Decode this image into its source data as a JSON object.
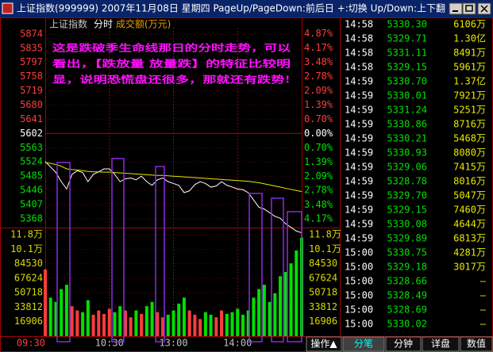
{
  "window": {
    "title": "上证指数(999999) 2007年11月08日 星期四 PageUp/PageDown:前后日 +:切换 Up/Down:上下翻"
  },
  "chart_data": {
    "type": "line",
    "title": "上证指数",
    "period": "分时",
    "annotation": [
      "这是跌破季生命线那日的分时走势，可以",
      "看出，【跌放量 放量跌】的特征比较明",
      "显，说明恐慌盘还很多，那就还有跌势!"
    ],
    "categories": [
      "09:30",
      null,
      null,
      null,
      null,
      null,
      null,
      null,
      null,
      null,
      null,
      null,
      "10:30",
      null,
      null,
      null,
      null,
      null,
      null,
      null,
      null,
      null,
      null,
      null,
      "13:00",
      null,
      null,
      null,
      null,
      null,
      null,
      null,
      null,
      null,
      null,
      null,
      "14:00",
      null,
      null,
      null,
      null,
      null,
      null,
      null,
      null,
      null,
      null,
      null,
      null
    ],
    "series": [
      {
        "color": "#ffffff",
        "values": [
          5525,
          5510,
          5495,
          5470,
          5450,
          5490,
          5500,
          5495,
          5470,
          5490,
          5497,
          5505,
          5505,
          5490,
          5470,
          5478,
          5480,
          5475,
          5485,
          5470,
          5460,
          5475,
          5480,
          5470,
          5465,
          5460,
          5440,
          5445,
          5462,
          5470,
          5465,
          5455,
          5458,
          5470,
          5460,
          5455,
          5450,
          5448,
          5440,
          5420,
          5400,
          5395,
          5385,
          5375,
          5370,
          5355,
          5345,
          5335,
          5330
        ]
      },
      {
        "color": "#e8e800",
        "values": [
          5522,
          5520,
          5517,
          5512,
          5505,
          5503,
          5502,
          5500,
          5498,
          5497,
          5497,
          5496,
          5496,
          5495,
          5494,
          5493,
          5492,
          5491,
          5490,
          5489,
          5488,
          5487,
          5487,
          5486,
          5485,
          5484,
          5483,
          5482,
          5481,
          5480,
          5479,
          5478,
          5477,
          5476,
          5475,
          5474,
          5473,
          5472,
          5471,
          5469,
          5467,
          5464,
          5461,
          5458,
          5455,
          5452,
          5449,
          5446,
          5443
        ]
      }
    ],
    "ylim": [
      5325,
      5891
    ],
    "yticks": [
      5874,
      5835,
      5797,
      5758,
      5719,
      5680,
      5641,
      5602,
      5563,
      5524,
      5485,
      5446,
      5407,
      5368
    ],
    "y2lim": [
      -4.94,
      5.16
    ],
    "y2ticks": [
      {
        "value": 4.87,
        "label": "4.87%"
      },
      {
        "value": 4.17,
        "label": "4.17%"
      },
      {
        "value": 3.48,
        "label": "3.48%"
      },
      {
        "value": 2.78,
        "label": "2.78%"
      },
      {
        "value": 2.09,
        "label": "2.09%"
      },
      {
        "value": 1.39,
        "label": "1.39%"
      },
      {
        "value": 0.7,
        "label": "0.70%"
      },
      {
        "value": 0,
        "label": "0.00%"
      },
      {
        "value": -0.7,
        "label": "0.70%"
      },
      {
        "value": -1.39,
        "label": "1.39%"
      },
      {
        "value": -2.09,
        "label": "2.09%"
      },
      {
        "value": -2.78,
        "label": "2.78%"
      },
      {
        "value": -3.48,
        "label": "3.48%"
      },
      {
        "value": -4.17,
        "label": "4.17%"
      }
    ],
    "grid": true,
    "up_color": "#ff3c3c",
    "down_color": "#00e000",
    "flat_color": "#ffffff",
    "volume": {
      "title": "成交额(万元)",
      "values": [
        78000,
        45000,
        40000,
        55000,
        60000,
        35000,
        30000,
        28000,
        42000,
        25000,
        30000,
        26000,
        32000,
        28000,
        35000,
        30000,
        22000,
        30000,
        26000,
        35000,
        40000,
        28000,
        22000,
        25000,
        30000,
        38000,
        45000,
        30000,
        25000,
        20000,
        28000,
        25000,
        22000,
        30000,
        26000,
        28000,
        32000,
        25000,
        30000,
        45000,
        55000,
        60000,
        40000,
        50000,
        70000,
        75000,
        85000,
        100000,
        115000
      ],
      "ylim": [
        0,
        125000
      ],
      "yticks": [
        {
          "value": 118342,
          "label": "11.8万"
        },
        {
          "value": 101436,
          "label": "10.1万"
        },
        84530,
        67624,
        50718,
        33812,
        16906
      ],
      "tick_color": "#d8d800"
    }
  },
  "trades": {
    "rows": [
      [
        "14:58",
        "5330.30",
        "6106万"
      ],
      [
        "14:58",
        "5329.71",
        "1.30亿"
      ],
      [
        "14:58",
        "5331.11",
        "8491万"
      ],
      [
        "14:58",
        "5329.15",
        "5961万"
      ],
      [
        "14:59",
        "5330.70",
        "1.37亿"
      ],
      [
        "14:59",
        "5330.01",
        "7921万"
      ],
      [
        "14:59",
        "5331.24",
        "5251万"
      ],
      [
        "14:59",
        "5330.86",
        "8716万"
      ],
      [
        "14:59",
        "5330.21",
        "5468万"
      ],
      [
        "14:59",
        "5330.93",
        "8080万"
      ],
      [
        "14:59",
        "5329.06",
        "7415万"
      ],
      [
        "14:59",
        "5328.78",
        "8016万"
      ],
      [
        "14:59",
        "5329.70",
        "5047万"
      ],
      [
        "14:59",
        "5329.15",
        "7460万"
      ],
      [
        "14:59",
        "5330.08",
        "4644万"
      ],
      [
        "14:59",
        "5329.89",
        "6813万"
      ],
      [
        "15:00",
        "5330.75",
        "4281万"
      ],
      [
        "15:00",
        "5329.18",
        "3017万"
      ],
      [
        "15:00",
        "5328.66",
        "—"
      ],
      [
        "15:00",
        "5328.49",
        "—"
      ],
      [
        "15:00",
        "5328.69",
        "—"
      ],
      [
        "15:00",
        "5330.02",
        "—"
      ]
    ]
  },
  "tabs": [
    "操作▲",
    "分笔",
    "分钟",
    "详盘",
    "数值"
  ]
}
